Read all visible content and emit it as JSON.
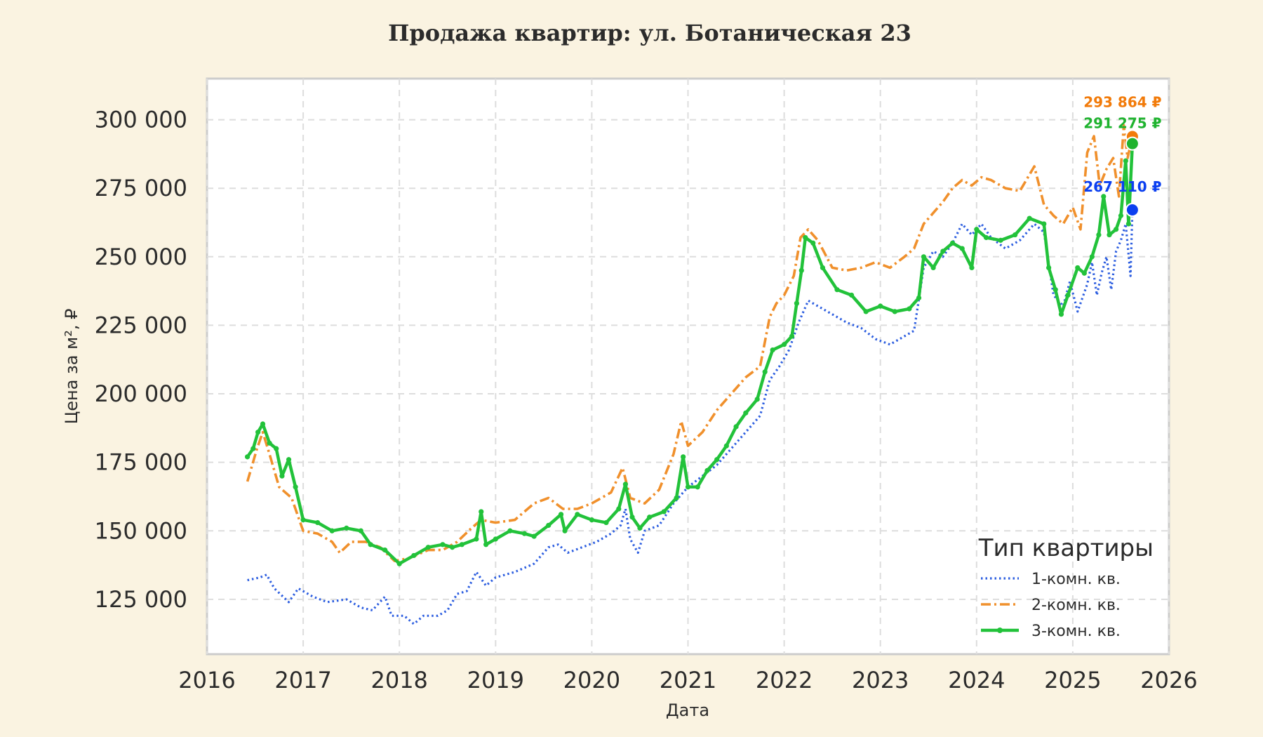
{
  "chart_data": {
    "type": "line",
    "title": "Продажа квартир: ул. Ботаническая 23",
    "xlabel": "Дата",
    "ylabel": "Цена за м², ₽",
    "xlim": [
      2016.0,
      2026.0
    ],
    "ylim": [
      105000,
      315000
    ],
    "x_ticks": [
      2016,
      2017,
      2018,
      2019,
      2020,
      2021,
      2022,
      2023,
      2024,
      2025,
      2026
    ],
    "x_tick_labels": [
      "2016",
      "2017",
      "2018",
      "2019",
      "2020",
      "2021",
      "2022",
      "2023",
      "2024",
      "2025",
      "2026"
    ],
    "y_ticks": [
      125000,
      150000,
      175000,
      200000,
      225000,
      250000,
      275000,
      300000
    ],
    "y_tick_labels": [
      "125 000",
      "150 000",
      "175 000",
      "200 000",
      "225 000",
      "250 000",
      "275 000",
      "300 000"
    ],
    "grid": true,
    "legend": {
      "title": "Тип квартиры",
      "position": "bottom-right"
    },
    "series": [
      {
        "name": "1-комн. кв.",
        "color": "#2e5fe0",
        "style": "dotted",
        "end_label": "267 110 ₽",
        "end_color": "#0b3ff0",
        "points": [
          [
            2016.42,
            132000
          ],
          [
            2016.55,
            133000
          ],
          [
            2016.62,
            134000
          ],
          [
            2016.7,
            129000
          ],
          [
            2016.85,
            124000
          ],
          [
            2016.95,
            129000
          ],
          [
            2017.1,
            126000
          ],
          [
            2017.25,
            124000
          ],
          [
            2017.45,
            125000
          ],
          [
            2017.6,
            122000
          ],
          [
            2017.72,
            121000
          ],
          [
            2017.85,
            126000
          ],
          [
            2017.92,
            119000
          ],
          [
            2018.05,
            119000
          ],
          [
            2018.15,
            116000
          ],
          [
            2018.25,
            119000
          ],
          [
            2018.4,
            119000
          ],
          [
            2018.5,
            121000
          ],
          [
            2018.6,
            127000
          ],
          [
            2018.7,
            128000
          ],
          [
            2018.8,
            135000
          ],
          [
            2018.9,
            130000
          ],
          [
            2019.0,
            133000
          ],
          [
            2019.2,
            135000
          ],
          [
            2019.4,
            138000
          ],
          [
            2019.55,
            144000
          ],
          [
            2019.65,
            145000
          ],
          [
            2019.75,
            142000
          ],
          [
            2019.9,
            144000
          ],
          [
            2020.05,
            146000
          ],
          [
            2020.2,
            149000
          ],
          [
            2020.3,
            152000
          ],
          [
            2020.35,
            158000
          ],
          [
            2020.4,
            147000
          ],
          [
            2020.48,
            142000
          ],
          [
            2020.55,
            150000
          ],
          [
            2020.7,
            152000
          ],
          [
            2020.85,
            160000
          ],
          [
            2021.0,
            166000
          ],
          [
            2021.15,
            170000
          ],
          [
            2021.3,
            174000
          ],
          [
            2021.45,
            180000
          ],
          [
            2021.6,
            186000
          ],
          [
            2021.75,
            192000
          ],
          [
            2021.85,
            205000
          ],
          [
            2021.95,
            210000
          ],
          [
            2022.05,
            216000
          ],
          [
            2022.15,
            226000
          ],
          [
            2022.25,
            234000
          ],
          [
            2022.35,
            232000
          ],
          [
            2022.5,
            229000
          ],
          [
            2022.65,
            226000
          ],
          [
            2022.8,
            224000
          ],
          [
            2022.95,
            220000
          ],
          [
            2023.1,
            218000
          ],
          [
            2023.25,
            221000
          ],
          [
            2023.35,
            223000
          ],
          [
            2023.45,
            246000
          ],
          [
            2023.55,
            252000
          ],
          [
            2023.65,
            250000
          ],
          [
            2023.75,
            255000
          ],
          [
            2023.85,
            262000
          ],
          [
            2023.95,
            258000
          ],
          [
            2024.05,
            262000
          ],
          [
            2024.15,
            257000
          ],
          [
            2024.3,
            253000
          ],
          [
            2024.45,
            256000
          ],
          [
            2024.6,
            262000
          ],
          [
            2024.7,
            259000
          ],
          [
            2024.8,
            236000
          ],
          [
            2024.9,
            232000
          ],
          [
            2024.97,
            241000
          ],
          [
            2025.05,
            230000
          ],
          [
            2025.15,
            240000
          ],
          [
            2025.2,
            248000
          ],
          [
            2025.25,
            236000
          ],
          [
            2025.3,
            244000
          ],
          [
            2025.35,
            250000
          ],
          [
            2025.4,
            238000
          ],
          [
            2025.45,
            252000
          ],
          [
            2025.5,
            256000
          ],
          [
            2025.55,
            262000
          ],
          [
            2025.6,
            243000
          ],
          [
            2025.62,
            267110
          ]
        ]
      },
      {
        "name": "2-комн. кв.",
        "color": "#f0902c",
        "style": "dashdot",
        "end_label": "293 864 ₽",
        "end_color": "#f27b0a",
        "points": [
          [
            2016.42,
            168000
          ],
          [
            2016.52,
            180000
          ],
          [
            2016.58,
            186000
          ],
          [
            2016.65,
            178000
          ],
          [
            2016.75,
            166000
          ],
          [
            2016.88,
            162000
          ],
          [
            2016.95,
            155000
          ],
          [
            2017.0,
            150000
          ],
          [
            2017.15,
            149000
          ],
          [
            2017.3,
            146000
          ],
          [
            2017.38,
            142000
          ],
          [
            2017.5,
            146000
          ],
          [
            2017.65,
            146000
          ],
          [
            2017.8,
            144000
          ],
          [
            2017.95,
            139000
          ],
          [
            2018.1,
            140000
          ],
          [
            2018.3,
            143000
          ],
          [
            2018.45,
            143000
          ],
          [
            2018.6,
            146000
          ],
          [
            2018.75,
            151000
          ],
          [
            2018.85,
            154000
          ],
          [
            2019.0,
            153000
          ],
          [
            2019.2,
            154000
          ],
          [
            2019.4,
            160000
          ],
          [
            2019.55,
            162000
          ],
          [
            2019.7,
            158000
          ],
          [
            2019.85,
            158000
          ],
          [
            2020.0,
            160000
          ],
          [
            2020.2,
            164000
          ],
          [
            2020.32,
            173000
          ],
          [
            2020.4,
            162000
          ],
          [
            2020.55,
            160000
          ],
          [
            2020.7,
            165000
          ],
          [
            2020.85,
            178000
          ],
          [
            2020.93,
            190000
          ],
          [
            2021.0,
            181000
          ],
          [
            2021.15,
            186000
          ],
          [
            2021.3,
            194000
          ],
          [
            2021.45,
            200000
          ],
          [
            2021.6,
            206000
          ],
          [
            2021.75,
            210000
          ],
          [
            2021.85,
            228000
          ],
          [
            2021.92,
            233000
          ],
          [
            2022.0,
            236000
          ],
          [
            2022.1,
            243000
          ],
          [
            2022.17,
            257000
          ],
          [
            2022.25,
            260000
          ],
          [
            2022.35,
            256000
          ],
          [
            2022.5,
            246000
          ],
          [
            2022.65,
            245000
          ],
          [
            2022.8,
            246000
          ],
          [
            2022.95,
            248000
          ],
          [
            2023.1,
            246000
          ],
          [
            2023.25,
            250000
          ],
          [
            2023.35,
            253000
          ],
          [
            2023.45,
            262000
          ],
          [
            2023.55,
            266000
          ],
          [
            2023.65,
            270000
          ],
          [
            2023.75,
            275000
          ],
          [
            2023.85,
            278000
          ],
          [
            2023.95,
            276000
          ],
          [
            2024.05,
            279000
          ],
          [
            2024.15,
            278000
          ],
          [
            2024.3,
            275000
          ],
          [
            2024.45,
            274000
          ],
          [
            2024.6,
            283000
          ],
          [
            2024.7,
            269000
          ],
          [
            2024.8,
            265000
          ],
          [
            2024.9,
            262000
          ],
          [
            2025.0,
            268000
          ],
          [
            2025.08,
            260000
          ],
          [
            2025.15,
            288000
          ],
          [
            2025.22,
            294000
          ],
          [
            2025.28,
            276000
          ],
          [
            2025.35,
            282000
          ],
          [
            2025.42,
            286000
          ],
          [
            2025.48,
            272000
          ],
          [
            2025.53,
            298000
          ],
          [
            2025.57,
            286000
          ],
          [
            2025.62,
            293864
          ]
        ]
      },
      {
        "name": "3-комн. кв.",
        "color": "#22c23a",
        "style": "solid-markers",
        "end_label": "291 275 ₽",
        "end_color": "#1fb32f",
        "points": [
          [
            2016.42,
            177000
          ],
          [
            2016.48,
            180000
          ],
          [
            2016.53,
            186000
          ],
          [
            2016.58,
            189000
          ],
          [
            2016.65,
            182000
          ],
          [
            2016.72,
            180000
          ],
          [
            2016.78,
            170000
          ],
          [
            2016.85,
            176000
          ],
          [
            2016.92,
            166000
          ],
          [
            2017.0,
            154000
          ],
          [
            2017.15,
            153000
          ],
          [
            2017.3,
            150000
          ],
          [
            2017.45,
            151000
          ],
          [
            2017.6,
            150000
          ],
          [
            2017.7,
            145000
          ],
          [
            2017.85,
            143000
          ],
          [
            2018.0,
            138000
          ],
          [
            2018.15,
            141000
          ],
          [
            2018.3,
            144000
          ],
          [
            2018.45,
            145000
          ],
          [
            2018.55,
            144000
          ],
          [
            2018.65,
            145000
          ],
          [
            2018.8,
            147000
          ],
          [
            2018.85,
            157000
          ],
          [
            2018.9,
            145000
          ],
          [
            2019.0,
            147000
          ],
          [
            2019.15,
            150000
          ],
          [
            2019.3,
            149000
          ],
          [
            2019.4,
            148000
          ],
          [
            2019.55,
            152000
          ],
          [
            2019.68,
            156000
          ],
          [
            2019.72,
            150000
          ],
          [
            2019.85,
            156000
          ],
          [
            2020.0,
            154000
          ],
          [
            2020.15,
            153000
          ],
          [
            2020.28,
            158000
          ],
          [
            2020.35,
            167000
          ],
          [
            2020.42,
            155000
          ],
          [
            2020.5,
            151000
          ],
          [
            2020.6,
            155000
          ],
          [
            2020.75,
            157000
          ],
          [
            2020.88,
            162000
          ],
          [
            2020.95,
            177000
          ],
          [
            2021.0,
            166000
          ],
          [
            2021.1,
            166000
          ],
          [
            2021.2,
            172000
          ],
          [
            2021.3,
            176000
          ],
          [
            2021.4,
            181000
          ],
          [
            2021.5,
            188000
          ],
          [
            2021.6,
            193000
          ],
          [
            2021.72,
            198000
          ],
          [
            2021.8,
            208000
          ],
          [
            2021.88,
            216000
          ],
          [
            2022.0,
            218000
          ],
          [
            2022.08,
            221000
          ],
          [
            2022.13,
            233000
          ],
          [
            2022.18,
            245000
          ],
          [
            2022.22,
            257000
          ],
          [
            2022.3,
            255000
          ],
          [
            2022.4,
            246000
          ],
          [
            2022.55,
            238000
          ],
          [
            2022.7,
            236000
          ],
          [
            2022.85,
            230000
          ],
          [
            2023.0,
            232000
          ],
          [
            2023.15,
            230000
          ],
          [
            2023.3,
            231000
          ],
          [
            2023.4,
            235000
          ],
          [
            2023.45,
            250000
          ],
          [
            2023.55,
            246000
          ],
          [
            2023.65,
            252000
          ],
          [
            2023.75,
            255000
          ],
          [
            2023.85,
            253000
          ],
          [
            2023.95,
            246000
          ],
          [
            2024.0,
            260000
          ],
          [
            2024.1,
            257000
          ],
          [
            2024.25,
            256000
          ],
          [
            2024.4,
            258000
          ],
          [
            2024.55,
            264000
          ],
          [
            2024.7,
            262000
          ],
          [
            2024.75,
            246000
          ],
          [
            2024.82,
            238000
          ],
          [
            2024.88,
            229000
          ],
          [
            2024.95,
            236000
          ],
          [
            2025.05,
            246000
          ],
          [
            2025.12,
            244000
          ],
          [
            2025.2,
            250000
          ],
          [
            2025.27,
            258000
          ],
          [
            2025.32,
            272000
          ],
          [
            2025.38,
            258000
          ],
          [
            2025.45,
            260000
          ],
          [
            2025.5,
            265000
          ],
          [
            2025.55,
            285000
          ],
          [
            2025.58,
            262000
          ],
          [
            2025.62,
            291275
          ]
        ]
      }
    ]
  }
}
